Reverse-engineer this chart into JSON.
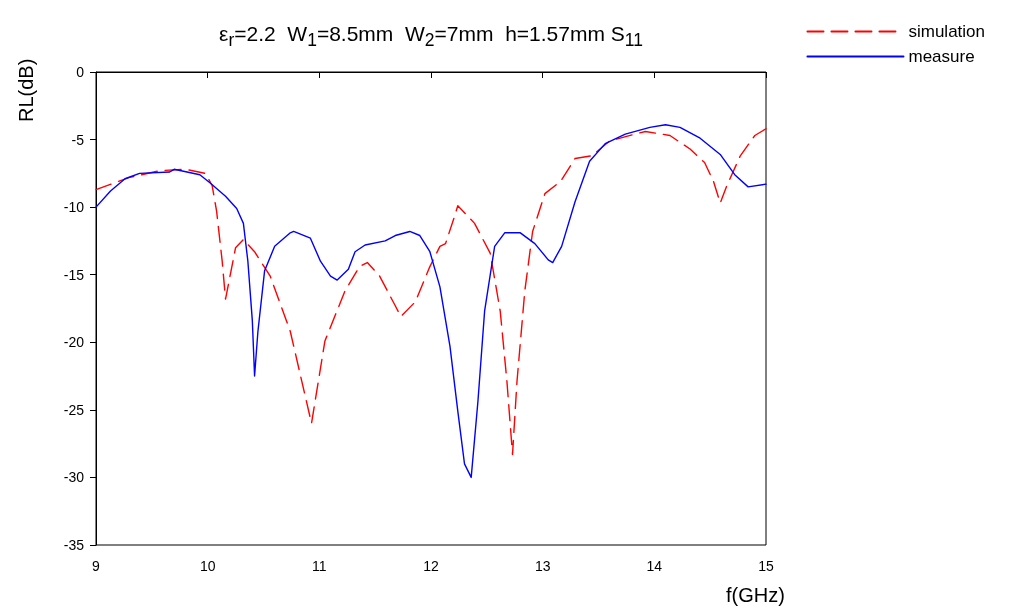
{
  "chart_data": {
    "type": "line",
    "title": "ε$_{r}$=2.2  W$_{1}$=8.5mm  W$_{2}$=7mm  h=1.57mm S$_{11}$",
    "xlabel": "f(GHz)",
    "ylabel": "RL(dB)",
    "xlim": [
      9,
      15
    ],
    "xticks": [
      9,
      10,
      11,
      12,
      13,
      14,
      15
    ],
    "ylim": [
      -35,
      0
    ],
    "yticks": [
      -35,
      -30,
      -25,
      -20,
      -15,
      -10,
      -5,
      0
    ],
    "grid": false,
    "legend": "top right",
    "marker": "none",
    "series": [
      {
        "name": "simulation",
        "color": "#ff0000",
        "line_style": "dashed",
        "x": [
          9.0,
          9.3,
          9.57,
          9.8,
          9.98,
          10.04,
          10.08,
          10.13,
          10.16,
          10.25,
          10.32,
          10.42,
          10.56,
          10.74,
          10.93,
          11.05,
          11.23,
          11.36,
          11.43,
          11.54,
          11.68,
          11.73,
          11.86,
          11.99,
          12.08,
          12.13,
          12.21,
          12.24,
          12.39,
          12.53,
          12.62,
          12.68,
          12.73,
          12.77,
          12.84,
          12.91,
          13.02,
          13.16,
          13.29,
          13.44,
          13.6,
          13.87,
          13.92,
          14.14,
          14.32,
          14.41,
          14.45,
          14.53,
          14.59,
          14.65,
          14.77,
          14.9,
          15.0
        ],
        "values": [
          -8.7,
          -7.8,
          -7.3,
          -7.2,
          -7.5,
          -8.4,
          -10.3,
          -14,
          -16.8,
          -13,
          -12.4,
          -13.3,
          -15.1,
          -19.2,
          -26,
          -19.9,
          -16.2,
          -14.4,
          -14.1,
          -15.1,
          -17.3,
          -18.1,
          -17,
          -14.4,
          -12.9,
          -12.7,
          -10.7,
          -9.9,
          -11.2,
          -13.4,
          -17.7,
          -22.9,
          -28.3,
          -22.9,
          -16.2,
          -11.8,
          -9.0,
          -8.1,
          -6.4,
          -6.2,
          -5.1,
          -4.5,
          -4.4,
          -4.7,
          -5.7,
          -6.4,
          -6.7,
          -8.1,
          -9.7,
          -8.4,
          -6.2,
          -4.7,
          -4.2
        ]
      },
      {
        "name": "measure",
        "color": "#0000ff",
        "line_style": "solid",
        "x": [
          9.0,
          9.13,
          9.26,
          9.39,
          9.66,
          9.7,
          9.93,
          10.02,
          10.16,
          10.26,
          10.32,
          10.36,
          10.4,
          10.42,
          10.45,
          10.51,
          10.6,
          10.74,
          10.77,
          10.92,
          11.01,
          11.1,
          11.16,
          11.26,
          11.32,
          11.41,
          11.59,
          11.68,
          11.81,
          11.9,
          11.99,
          12.08,
          12.17,
          12.24,
          12.3,
          12.36,
          12.42,
          12.48,
          12.57,
          12.66,
          12.8,
          12.93,
          13.05,
          13.09,
          13.17,
          13.29,
          13.42,
          13.56,
          13.74,
          13.96,
          14.1,
          14.23,
          14.41,
          14.59,
          14.72,
          14.84,
          15.0
        ],
        "values": [
          -10,
          -8.8,
          -7.9,
          -7.5,
          -7.4,
          -7.2,
          -7.6,
          -8.2,
          -9.2,
          -10.1,
          -11.2,
          -14,
          -18.4,
          -22.5,
          -19.2,
          -14.7,
          -12.9,
          -11.9,
          -11.8,
          -12.3,
          -14,
          -15.1,
          -15.4,
          -14.6,
          -13.3,
          -12.8,
          -12.5,
          -12.1,
          -11.8,
          -12.1,
          -13.3,
          -15.9,
          -20.3,
          -25.1,
          -29.0,
          -30.0,
          -24.4,
          -17.7,
          -12.9,
          -11.9,
          -11.9,
          -12.7,
          -13.9,
          -14.1,
          -12.9,
          -9.6,
          -6.6,
          -5.3,
          -4.6,
          -4.1,
          -3.9,
          -4.1,
          -4.9,
          -6.1,
          -7.6,
          -8.5,
          -8.3
        ]
      }
    ]
  }
}
